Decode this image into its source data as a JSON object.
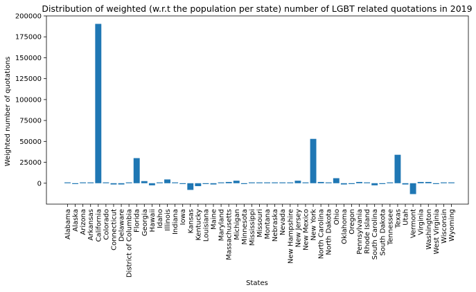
{
  "chart_data": {
    "type": "bar",
    "title": "Distribution of weighted (w.r.t the population per state) number of LGBT related quotations in 2019",
    "xlabel": "States",
    "ylabel": "Weighted number of quotations",
    "ylim": [
      -25000,
      200000
    ],
    "yticks": [
      0,
      25000,
      50000,
      75000,
      100000,
      125000,
      150000,
      175000,
      200000
    ],
    "grid": false,
    "bar_color": "#1f77b4",
    "categories": [
      "Alabama",
      "Alaska",
      "Arizona",
      "Arkansas",
      "California",
      "Colorado",
      "Connecticut",
      "Delaware",
      "District of Columbia",
      "Florida",
      "Georgia",
      "Hawaii",
      "Idaho",
      "Illinois",
      "Indiana",
      "Iowa",
      "Kansas",
      "Kentucky",
      "Louisiana",
      "Maine",
      "Maryland",
      "Massachusetts",
      "Michigan",
      "Minnesota",
      "Mississippi",
      "Missouri",
      "Montana",
      "Nebraska",
      "Nevada",
      "New Hampshire",
      "New Jersey",
      "New Mexico",
      "New York",
      "North Carolina",
      "North Dakota",
      "Ohio",
      "Oklahoma",
      "Oregon",
      "Pennsylvania",
      "Rhode Island",
      "South Carolina",
      "South Dakota",
      "Tennessee",
      "Texas",
      "Utah",
      "Vermont",
      "Virginia",
      "Washington",
      "West Virginia",
      "Wisconsin",
      "Wyoming"
    ],
    "values": [
      0,
      -800,
      600,
      0,
      190500,
      0,
      -1500,
      -1500,
      0,
      30000,
      2500,
      -2500,
      0,
      4500,
      0,
      -500,
      -8000,
      -3500,
      -1000,
      -1500,
      0,
      1500,
      3000,
      -1000,
      0,
      0,
      0,
      0,
      0,
      0,
      3000,
      0,
      53000,
      1500,
      0,
      6000,
      -1500,
      -1000,
      1500,
      0,
      -2500,
      -1000,
      500,
      34000,
      -1500,
      -13000,
      1500,
      1500,
      -1000,
      0,
      0
    ]
  }
}
